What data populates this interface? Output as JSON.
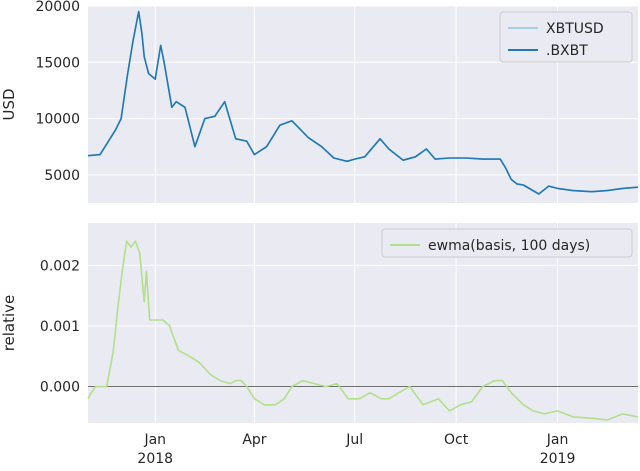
{
  "chart_data": [
    {
      "type": "line",
      "ylabel": "USD",
      "ylim": [
        2500,
        20000
      ],
      "xlim": [
        "2017-11-01",
        "2019-03-15"
      ],
      "yticks": [
        5000,
        10000,
        15000,
        20000
      ],
      "ytick_labels": [
        "5000",
        "10000",
        "15000",
        "20000"
      ],
      "grid": true,
      "legend_position": "top-right",
      "series": [
        {
          "name": "XBTUSD",
          "color": "#a6cee3",
          "x": [
            "2017-11-01",
            "2017-11-12",
            "2017-11-26",
            "2017-12-01",
            "2017-12-07",
            "2017-12-12",
            "2017-12-17",
            "2017-12-20",
            "2017-12-22",
            "2017-12-26",
            "2018-01-01",
            "2018-01-06",
            "2018-01-09",
            "2018-01-16",
            "2018-01-20",
            "2018-01-28",
            "2018-02-06",
            "2018-02-15",
            "2018-02-24",
            "2018-03-05",
            "2018-03-15",
            "2018-03-25",
            "2018-04-01",
            "2018-04-12",
            "2018-04-24",
            "2018-05-05",
            "2018-05-20",
            "2018-06-01",
            "2018-06-12",
            "2018-06-24",
            "2018-07-01",
            "2018-07-10",
            "2018-07-24",
            "2018-08-01",
            "2018-08-14",
            "2018-08-25",
            "2018-09-04",
            "2018-09-12",
            "2018-09-25",
            "2018-10-10",
            "2018-10-25",
            "2018-11-10",
            "2018-11-15",
            "2018-11-20",
            "2018-11-25",
            "2018-12-01",
            "2018-12-15",
            "2018-12-24",
            "2019-01-01",
            "2019-01-15",
            "2019-02-01",
            "2019-02-15",
            "2019-03-01",
            "2019-03-15"
          ],
          "values": [
            6700,
            6800,
            9000,
            10000,
            14000,
            17000,
            19500,
            17500,
            15500,
            14000,
            13500,
            16500,
            15000,
            11000,
            11500,
            11000,
            7500,
            10000,
            10200,
            11500,
            8200,
            8000,
            6800,
            7500,
            9400,
            9800,
            8300,
            7500,
            6500,
            6200,
            6400,
            6600,
            8200,
            7300,
            6300,
            6600,
            7300,
            6400,
            6500,
            6500,
            6400,
            6400,
            5600,
            4600,
            4200,
            4100,
            3300,
            4000,
            3800,
            3600,
            3500,
            3600,
            3800,
            3900
          ]
        },
        {
          "name": ".BXBT",
          "color": "#1f78b4",
          "x": [
            "2017-11-01",
            "2017-11-12",
            "2017-11-26",
            "2017-12-01",
            "2017-12-07",
            "2017-12-12",
            "2017-12-17",
            "2017-12-20",
            "2017-12-22",
            "2017-12-26",
            "2018-01-01",
            "2018-01-06",
            "2018-01-09",
            "2018-01-16",
            "2018-01-20",
            "2018-01-28",
            "2018-02-06",
            "2018-02-15",
            "2018-02-24",
            "2018-03-05",
            "2018-03-15",
            "2018-03-25",
            "2018-04-01",
            "2018-04-12",
            "2018-04-24",
            "2018-05-05",
            "2018-05-20",
            "2018-06-01",
            "2018-06-12",
            "2018-06-24",
            "2018-07-01",
            "2018-07-10",
            "2018-07-24",
            "2018-08-01",
            "2018-08-14",
            "2018-08-25",
            "2018-09-04",
            "2018-09-12",
            "2018-09-25",
            "2018-10-10",
            "2018-10-25",
            "2018-11-10",
            "2018-11-15",
            "2018-11-20",
            "2018-11-25",
            "2018-12-01",
            "2018-12-15",
            "2018-12-24",
            "2019-01-01",
            "2019-01-15",
            "2019-02-01",
            "2019-02-15",
            "2019-03-01",
            "2019-03-15"
          ],
          "values": [
            6700,
            6800,
            9000,
            10000,
            14000,
            17000,
            19500,
            17500,
            15500,
            14000,
            13500,
            16500,
            15000,
            11000,
            11500,
            11000,
            7500,
            10000,
            10200,
            11500,
            8200,
            8000,
            6800,
            7500,
            9400,
            9800,
            8300,
            7500,
            6500,
            6200,
            6400,
            6600,
            8200,
            7300,
            6300,
            6600,
            7300,
            6400,
            6500,
            6500,
            6400,
            6400,
            5600,
            4600,
            4200,
            4100,
            3300,
            4000,
            3800,
            3600,
            3500,
            3600,
            3800,
            3900
          ]
        }
      ]
    },
    {
      "type": "line",
      "ylabel": "relative",
      "ylim": [
        -0.0006,
        0.0027
      ],
      "xlim": [
        "2017-11-01",
        "2019-03-15"
      ],
      "yticks": [
        0.0,
        0.001,
        0.002
      ],
      "ytick_labels": [
        "0.000",
        "0.001",
        "0.002"
      ],
      "grid": true,
      "zero_line": true,
      "legend_position": "top-right",
      "xticks": [
        "2018-01-01",
        "2018-04-01",
        "2018-07-01",
        "2018-10-01",
        "2019-01-01"
      ],
      "xtick_labels": [
        [
          "Jan",
          "2018"
        ],
        [
          "Apr",
          ""
        ],
        [
          "Jul",
          ""
        ],
        [
          "Oct",
          ""
        ],
        [
          "Jan",
          "2019"
        ]
      ],
      "series": [
        {
          "name": "ewma(basis, 100 days)",
          "color": "#b2df8a",
          "x": [
            "2017-11-01",
            "2017-11-04",
            "2017-11-08",
            "2017-11-12",
            "2017-11-18",
            "2017-11-24",
            "2017-11-28",
            "2017-12-02",
            "2017-12-06",
            "2017-12-10",
            "2017-12-14",
            "2017-12-18",
            "2017-12-22",
            "2017-12-24",
            "2017-12-27",
            "2017-12-31",
            "2018-01-08",
            "2018-01-14",
            "2018-01-18",
            "2018-01-22",
            "2018-02-01",
            "2018-02-10",
            "2018-02-20",
            "2018-03-01",
            "2018-03-10",
            "2018-03-15",
            "2018-03-20",
            "2018-03-25",
            "2018-04-01",
            "2018-04-10",
            "2018-04-20",
            "2018-04-28",
            "2018-05-05",
            "2018-05-15",
            "2018-05-25",
            "2018-06-05",
            "2018-06-15",
            "2018-06-25",
            "2018-07-05",
            "2018-07-15",
            "2018-07-25",
            "2018-08-01",
            "2018-08-10",
            "2018-08-20",
            "2018-09-01",
            "2018-09-15",
            "2018-09-25",
            "2018-10-05",
            "2018-10-15",
            "2018-10-25",
            "2018-11-05",
            "2018-11-12",
            "2018-11-20",
            "2018-12-01",
            "2018-12-10",
            "2018-12-20",
            "2019-01-01",
            "2019-01-15",
            "2019-02-01",
            "2019-02-15",
            "2019-03-01",
            "2019-03-15"
          ],
          "values": [
            -0.0002,
            -0.0001,
            0.0,
            0.0,
            0.0,
            0.0006,
            0.0013,
            0.0019,
            0.0024,
            0.0023,
            0.0024,
            0.0022,
            0.0014,
            0.0019,
            0.0011,
            0.0011,
            0.0011,
            0.001,
            0.0008,
            0.0006,
            0.0005,
            0.0004,
            0.0002,
            0.0001,
            5e-05,
            0.0001,
            0.0001,
            0.0,
            -0.0002,
            -0.0003,
            -0.0003,
            -0.0002,
            0.0,
            0.0001,
            5e-05,
            0.0,
            5e-05,
            -0.0002,
            -0.0002,
            -0.0001,
            -0.0002,
            -0.0002,
            -0.0001,
            0.0,
            -0.0003,
            -0.0002,
            -0.0004,
            -0.0003,
            -0.00025,
            0.0,
            0.0001,
            0.0001,
            -0.0001,
            -0.0003,
            -0.0004,
            -0.00045,
            -0.0004,
            -0.0005,
            -0.00052,
            -0.00055,
            -0.00045,
            -0.0005
          ]
        }
      ]
    }
  ]
}
